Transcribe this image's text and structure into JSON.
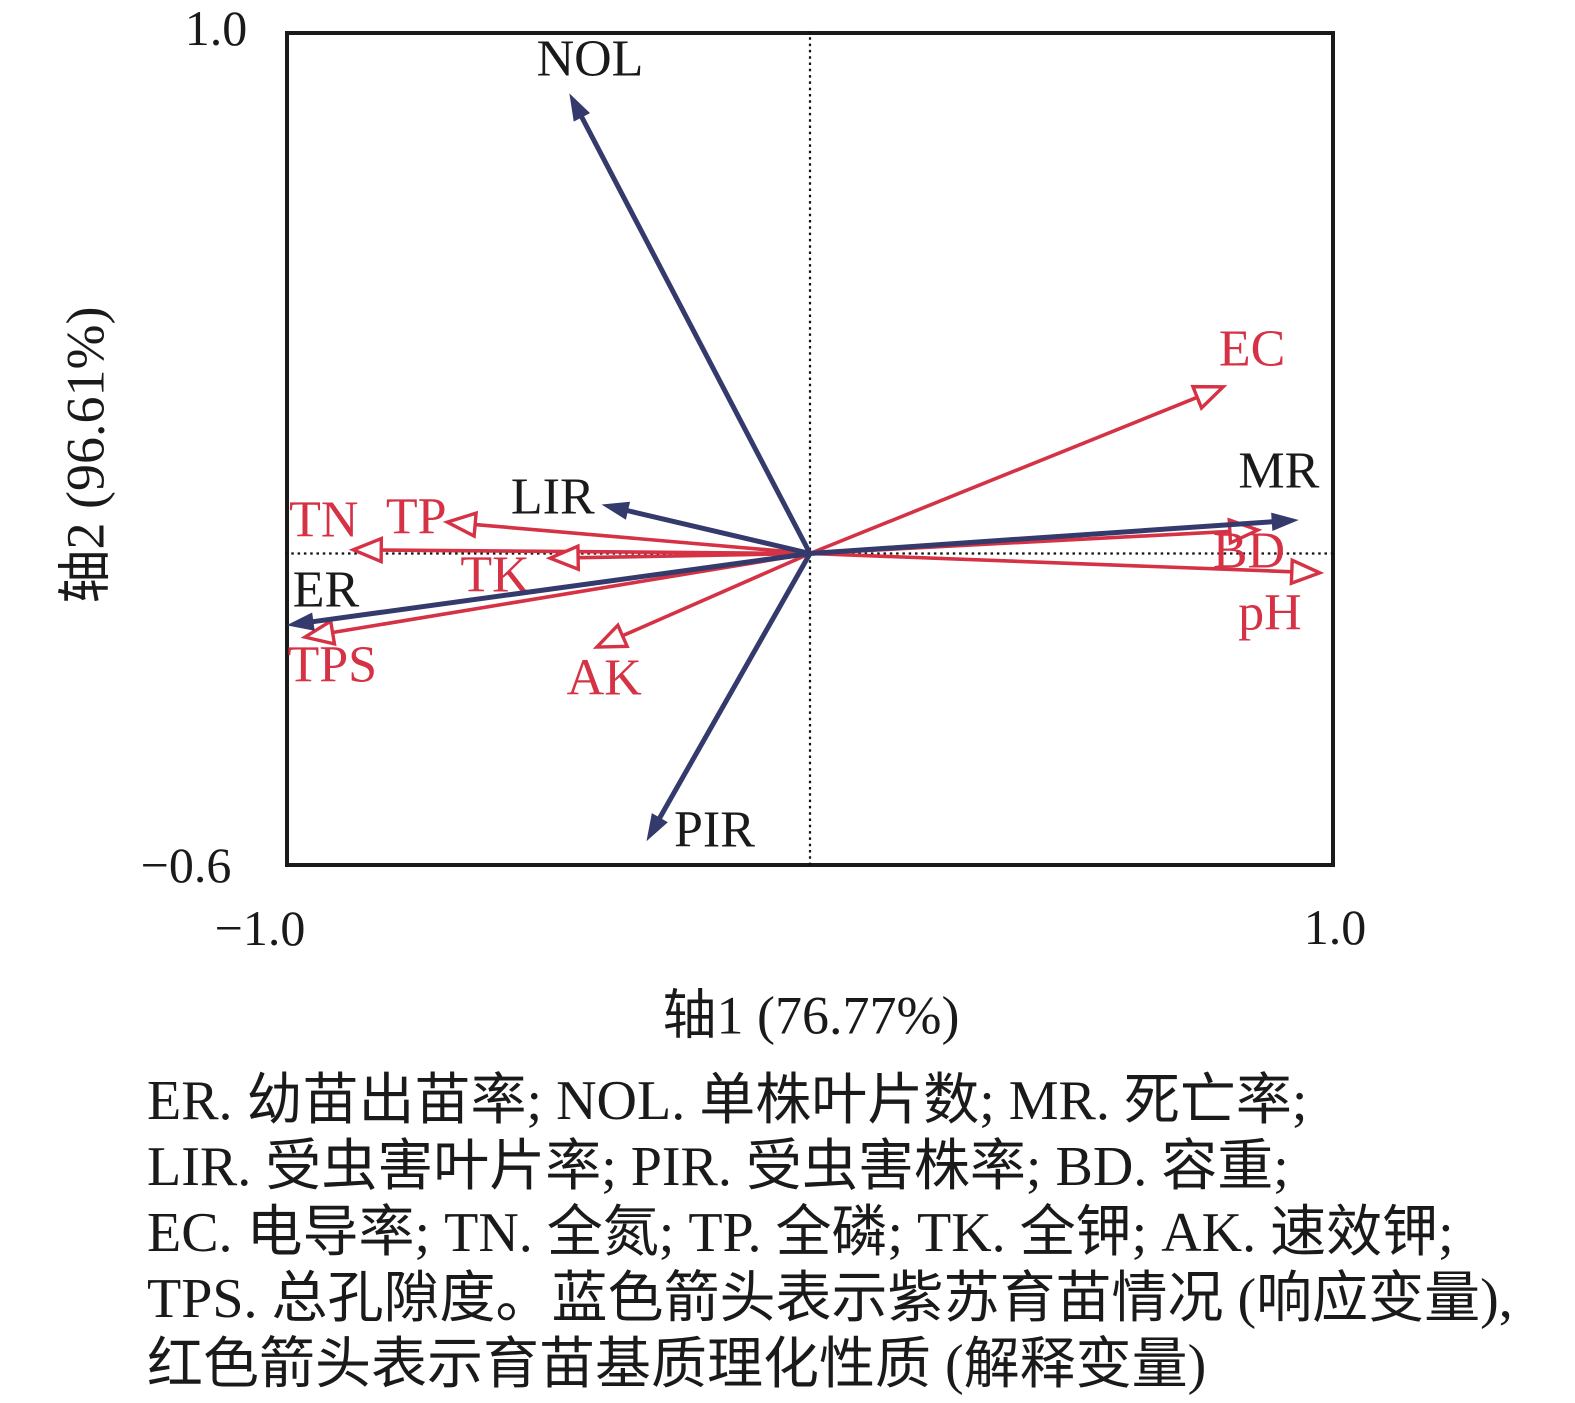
{
  "colors": {
    "response_blue": "#343a6c",
    "explanatory_red": "#d63245",
    "text_black": "#1a1a1a"
  },
  "axes": {
    "x_label": "轴1 (76.77%)",
    "y_label": "轴2 (96.61%)",
    "xlim": [
      -1.0,
      1.0
    ],
    "ylim": [
      -0.6,
      1.0
    ],
    "x_tick_labels": [
      "−1.0",
      "1.0"
    ],
    "y_tick_labels": [
      "1.0",
      "−0.6"
    ]
  },
  "chart_data": {
    "type": "scatter",
    "subtype": "rda-biplot-arrows",
    "title": "",
    "xlabel": "轴1 (76.77%)",
    "ylabel": "轴2 (96.61%)",
    "xlim": [
      -1.0,
      1.0
    ],
    "ylim": [
      -0.6,
      1.0
    ],
    "grid": "dotted zero-cross lines at x=0 and y=0",
    "legend_position": "none",
    "series": [
      {
        "name": "紫苏育苗情况 (响应变量, blue filled arrows)",
        "color": "#343a6c",
        "label_color": "#1a1a1a",
        "head": "filled",
        "arrows": [
          {
            "label": "NOL",
            "x": -0.457,
            "y": 0.878,
            "lx": -0.419,
            "ly": 0.946
          },
          {
            "label": "LIR",
            "x": -0.394,
            "y": 0.093,
            "lx": -0.49,
            "ly": 0.108
          },
          {
            "label": "ER",
            "x": -0.994,
            "y": -0.137,
            "lx": -0.922,
            "ly": -0.07
          },
          {
            "label": "MR",
            "x": 0.928,
            "y": 0.064,
            "lx": 0.893,
            "ly": 0.158
          },
          {
            "label": "PIR",
            "x": -0.31,
            "y": -0.548,
            "lx": -0.182,
            "ly": -0.529
          }
        ]
      },
      {
        "name": "育苗基质理化性质 (解释变量, red open arrows)",
        "color": "#d63245",
        "label_color": "#d63245",
        "head": "open",
        "arrows": [
          {
            "label": "EC",
            "x": 0.787,
            "y": 0.319,
            "lx": 0.842,
            "ly": 0.391
          },
          {
            "label": "BD",
            "x": 0.853,
            "y": 0.045,
            "lx": 0.836,
            "ly": 0.005
          },
          {
            "label": "pH",
            "x": 0.971,
            "y": -0.037,
            "lx": 0.876,
            "ly": -0.114
          },
          {
            "label": "TN",
            "x": -0.87,
            "y": 0.007,
            "lx": -0.926,
            "ly": 0.064
          },
          {
            "label": "TP",
            "x": -0.691,
            "y": 0.06,
            "lx": -0.75,
            "ly": 0.07
          },
          {
            "label": "TK",
            "x": -0.495,
            "y": -0.009,
            "lx": -0.6,
            "ly": -0.041
          },
          {
            "label": "AK",
            "x": -0.406,
            "y": -0.179,
            "lx": -0.392,
            "ly": -0.238
          },
          {
            "label": "TPS",
            "x": -0.962,
            "y": -0.16,
            "lx": -0.91,
            "ly": -0.213
          }
        ]
      }
    ]
  },
  "caption": {
    "lines": [
      "ER. 幼苗出苗率; NOL. 单株叶片数; MR. 死亡率;",
      "LIR. 受虫害叶片率; PIR. 受虫害株率; BD. 容重;",
      "EC. 电导率; TN. 全氮; TP. 全磷; TK. 全钾; AK. 速效钾;",
      "TPS. 总孔隙度。蓝色箭头表示紫苏育苗情况 (响应变量),",
      "红色箭头表示育苗基质理化性质 (解释变量)"
    ]
  }
}
